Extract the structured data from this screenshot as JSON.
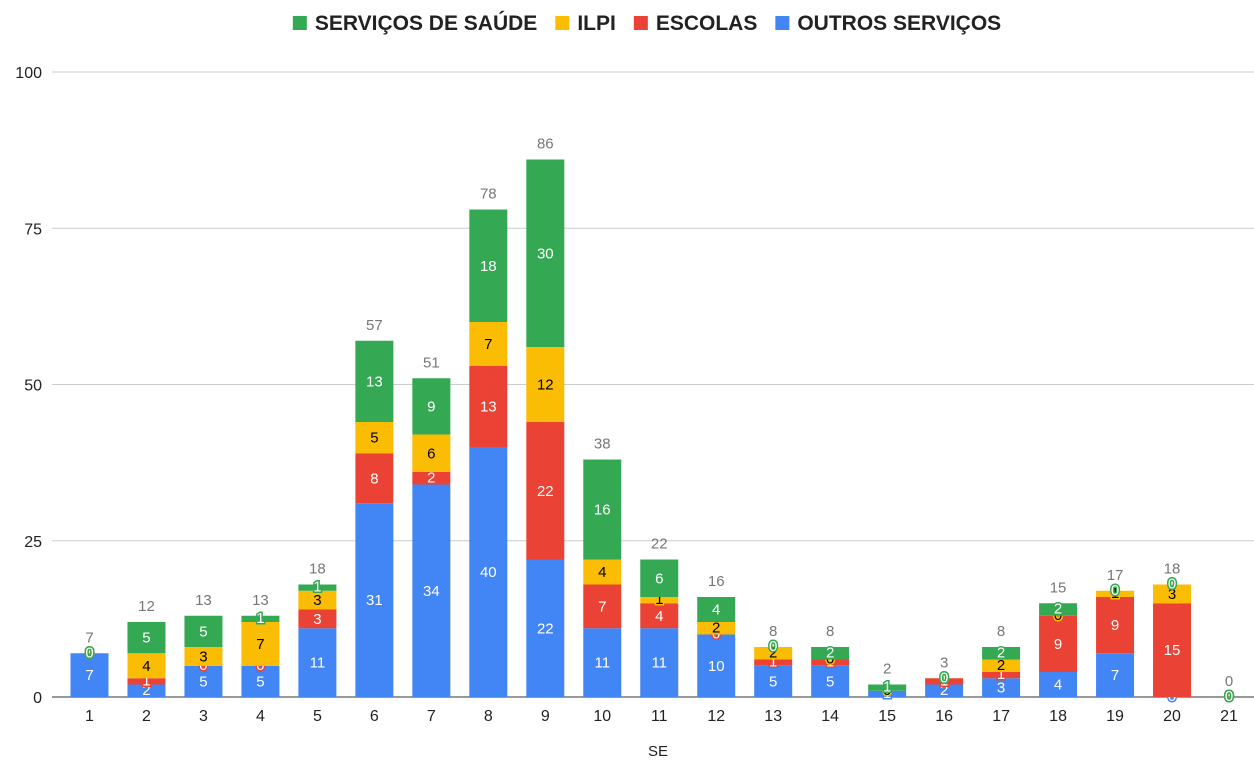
{
  "chart_data": {
    "type": "bar",
    "stacked": true,
    "xlabel": "SE",
    "ylabel": "",
    "ylim": [
      0,
      100
    ],
    "yticks": [
      0,
      25,
      50,
      75,
      100
    ],
    "grid": true,
    "legend_position": "top",
    "categories": [
      "1",
      "2",
      "3",
      "4",
      "5",
      "6",
      "7",
      "8",
      "9",
      "10",
      "11",
      "12",
      "13",
      "14",
      "15",
      "16",
      "17",
      "18",
      "19",
      "20",
      "21"
    ],
    "series": [
      {
        "name": "OUTROS SERVIÇOS",
        "color": "#4285F4",
        "label_color": "#ffffff",
        "values": [
          7,
          2,
          5,
          5,
          11,
          31,
          34,
          40,
          22,
          11,
          11,
          10,
          5,
          5,
          1,
          2,
          3,
          4,
          7,
          0,
          0
        ]
      },
      {
        "name": "ESCOLAS",
        "color": "#EA4335",
        "label_color": "#ffffff",
        "values": [
          0,
          1,
          0,
          0,
          3,
          8,
          2,
          13,
          22,
          7,
          4,
          0,
          1,
          1,
          0,
          1,
          1,
          9,
          9,
          15,
          0
        ]
      },
      {
        "name": "ILPI",
        "color": "#FBBC04",
        "label_color": "#000000",
        "values": [
          0,
          4,
          3,
          7,
          3,
          5,
          6,
          7,
          12,
          4,
          1,
          2,
          2,
          0,
          0,
          0,
          2,
          0,
          1,
          3,
          0
        ]
      },
      {
        "name": "SERVIÇOS DE SAÚDE",
        "color": "#34A853",
        "label_color": "#ffffff",
        "values": [
          0,
          5,
          5,
          1,
          1,
          13,
          9,
          18,
          30,
          16,
          6,
          4,
          0,
          2,
          1,
          0,
          2,
          2,
          0,
          0,
          0
        ]
      }
    ],
    "totals": [
      7,
      12,
      13,
      13,
      18,
      57,
      51,
      78,
      86,
      38,
      22,
      16,
      8,
      8,
      2,
      3,
      8,
      15,
      17,
      18,
      0
    ],
    "legend_order": [
      "SERVIÇOS DE SAÚDE",
      "ILPI",
      "ESCOLAS",
      "OUTROS SERVIÇOS"
    ]
  }
}
